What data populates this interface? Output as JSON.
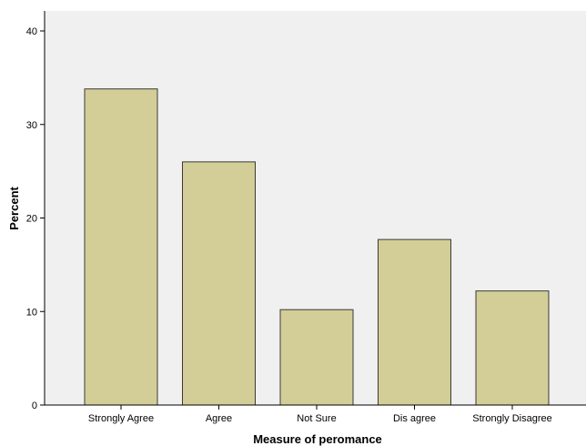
{
  "chart_data": {
    "type": "bar",
    "title": "",
    "xlabel": "Measure of peromance",
    "ylabel": "Percent",
    "categories": [
      "Strongly Agree",
      "Agree",
      "Not Sure",
      "Dis agree",
      "Strongly Disagree"
    ],
    "values": [
      33.8,
      26.0,
      10.2,
      17.7,
      12.2
    ],
    "ylim": [
      0,
      40
    ],
    "yticks": [
      0,
      10,
      20,
      30,
      40
    ],
    "grid": false,
    "legend": "none",
    "colors": {
      "plot_background": "#f0f0f0",
      "bar_fill": "#d3ce97",
      "bar_stroke": "#3a3a3a"
    }
  }
}
